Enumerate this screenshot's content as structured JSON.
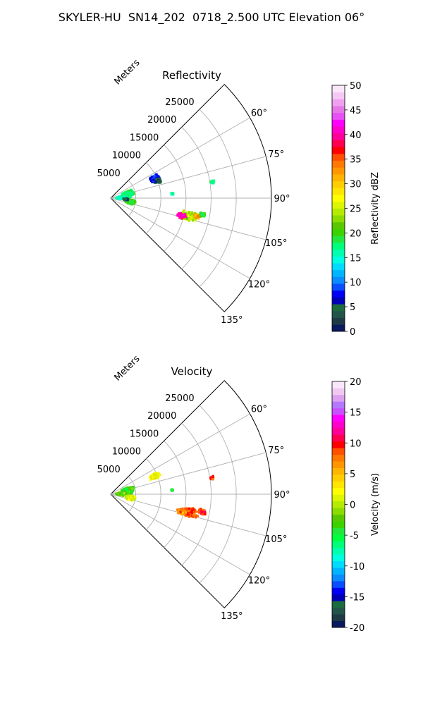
{
  "figure": {
    "title": "SKYLER-HU  SN14_202  0718_2.500 UTC Elevation 06°"
  },
  "chart_data": [
    {
      "type": "heatmap",
      "title": "Reflectivity",
      "radial_label": "Meters",
      "radial_ticks": [
        5000,
        10000,
        15000,
        20000,
        25000
      ],
      "radial_max": 32000,
      "angle_range_deg": [
        45,
        135
      ],
      "angle_ticks": [
        "60°",
        "75°",
        "90°",
        "105°",
        "120°",
        "135°"
      ],
      "grid": true,
      "colorbar": {
        "label": "Reflectivity dBZ",
        "min": 0,
        "max": 50,
        "ticks": [
          0,
          5,
          10,
          15,
          20,
          25,
          30,
          35,
          40,
          45,
          50
        ],
        "colors": [
          "#0a1a5c",
          "#1d3a45",
          "#22544a",
          "#1c6b3e",
          "#0000b4",
          "#0000f5",
          "#0a4fff",
          "#0a8cff",
          "#00b4ff",
          "#00dcff",
          "#00ffe0",
          "#00ffb0",
          "#00ff7a",
          "#22e63c",
          "#3cd200",
          "#5ac800",
          "#8cdc00",
          "#b4eb00",
          "#dcf500",
          "#ffff00",
          "#ffe600",
          "#ffcd00",
          "#ffb400",
          "#ff9600",
          "#ff7800",
          "#ff5000",
          "#ff0000",
          "#ff0050",
          "#ff0096",
          "#ff00c8",
          "#ff00ff",
          "#e650f5",
          "#e678e6",
          "#f0a0f0",
          "#f5c8f5",
          "#fae6fa"
        ]
      },
      "echoes": [
        {
          "range_m": 16000,
          "azimuth_deg": 103,
          "value": 24,
          "spread_m": 2200,
          "spread_deg": 4
        },
        {
          "range_m": 14500,
          "azimuth_deg": 104,
          "value": 40,
          "spread_m": 1200,
          "spread_deg": 2.5
        },
        {
          "range_m": 17500,
          "azimuth_deg": 102,
          "value": 32,
          "spread_m": 900,
          "spread_deg": 2
        },
        {
          "range_m": 18500,
          "azimuth_deg": 100,
          "value": 20,
          "spread_m": 900,
          "spread_deg": 2
        },
        {
          "range_m": 9500,
          "azimuth_deg": 66,
          "value": 8,
          "spread_m": 1300,
          "spread_deg": 5
        },
        {
          "range_m": 10000,
          "azimuth_deg": 70,
          "value": 4,
          "spread_m": 800,
          "spread_deg": 3
        },
        {
          "range_m": 3500,
          "azimuth_deg": 78,
          "value": 18,
          "spread_m": 1500,
          "spread_deg": 12
        },
        {
          "range_m": 2000,
          "azimuth_deg": 88,
          "value": 16,
          "spread_m": 1000,
          "spread_deg": 10
        },
        {
          "range_m": 4000,
          "azimuth_deg": 100,
          "value": 20,
          "spread_m": 1200,
          "spread_deg": 8
        },
        {
          "range_m": 3000,
          "azimuth_deg": 95,
          "value": 6,
          "spread_m": 600,
          "spread_deg": 5
        },
        {
          "range_m": 20500,
          "azimuth_deg": 81,
          "value": 18,
          "spread_m": 500,
          "spread_deg": 1.5
        },
        {
          "range_m": 12300,
          "azimuth_deg": 86,
          "value": 16,
          "spread_m": 300,
          "spread_deg": 1.5
        }
      ]
    },
    {
      "type": "heatmap",
      "title": "Velocity",
      "radial_label": "Meters",
      "radial_ticks": [
        5000,
        10000,
        15000,
        20000,
        25000
      ],
      "radial_max": 32000,
      "angle_range_deg": [
        45,
        135
      ],
      "angle_ticks": [
        "60°",
        "75°",
        "90°",
        "105°",
        "120°",
        "135°"
      ],
      "grid": true,
      "colorbar": {
        "label": "Velocity (m/s)",
        "min": -20,
        "max": 20,
        "ticks": [
          -20,
          -15,
          -10,
          -5,
          0,
          5,
          10,
          15,
          20
        ],
        "colors": [
          "#0a1a5c",
          "#1d3a45",
          "#22544a",
          "#1c6b3e",
          "#0000b4",
          "#0000f5",
          "#0a4fff",
          "#0a8cff",
          "#00b4ff",
          "#00dcff",
          "#00ffe0",
          "#00ffb0",
          "#00ff7a",
          "#00ff3c",
          "#22e63c",
          "#3cd200",
          "#5ac800",
          "#8cdc00",
          "#b4eb00",
          "#dcf500",
          "#ffff00",
          "#ffe600",
          "#ffcd00",
          "#ffb400",
          "#ff9600",
          "#ff7800",
          "#ff5000",
          "#ff0000",
          "#ff0050",
          "#ff0096",
          "#ff00c8",
          "#ff00ff",
          "#c850ff",
          "#b478ff",
          "#dca0f0",
          "#f0c8f0",
          "#fae6fa"
        ]
      },
      "echoes": [
        {
          "range_m": 16000,
          "azimuth_deg": 103,
          "value": 8,
          "spread_m": 2200,
          "spread_deg": 4
        },
        {
          "range_m": 14500,
          "azimuth_deg": 104,
          "value": 7,
          "spread_m": 1200,
          "spread_deg": 2.5
        },
        {
          "range_m": 18500,
          "azimuth_deg": 101,
          "value": 9,
          "spread_m": 900,
          "spread_deg": 2
        },
        {
          "range_m": 9500,
          "azimuth_deg": 68,
          "value": 2,
          "spread_m": 1300,
          "spread_deg": 5
        },
        {
          "range_m": 3500,
          "azimuth_deg": 78,
          "value": -3,
          "spread_m": 1500,
          "spread_deg": 12
        },
        {
          "range_m": 2000,
          "azimuth_deg": 88,
          "value": -2,
          "spread_m": 1000,
          "spread_deg": 10
        },
        {
          "range_m": 4000,
          "azimuth_deg": 100,
          "value": 1,
          "spread_m": 1200,
          "spread_deg": 8
        },
        {
          "range_m": 20500,
          "azimuth_deg": 81,
          "value": 9,
          "spread_m": 500,
          "spread_deg": 1.5
        },
        {
          "range_m": 12300,
          "azimuth_deg": 86,
          "value": -4,
          "spread_m": 300,
          "spread_deg": 1.5
        }
      ]
    }
  ]
}
